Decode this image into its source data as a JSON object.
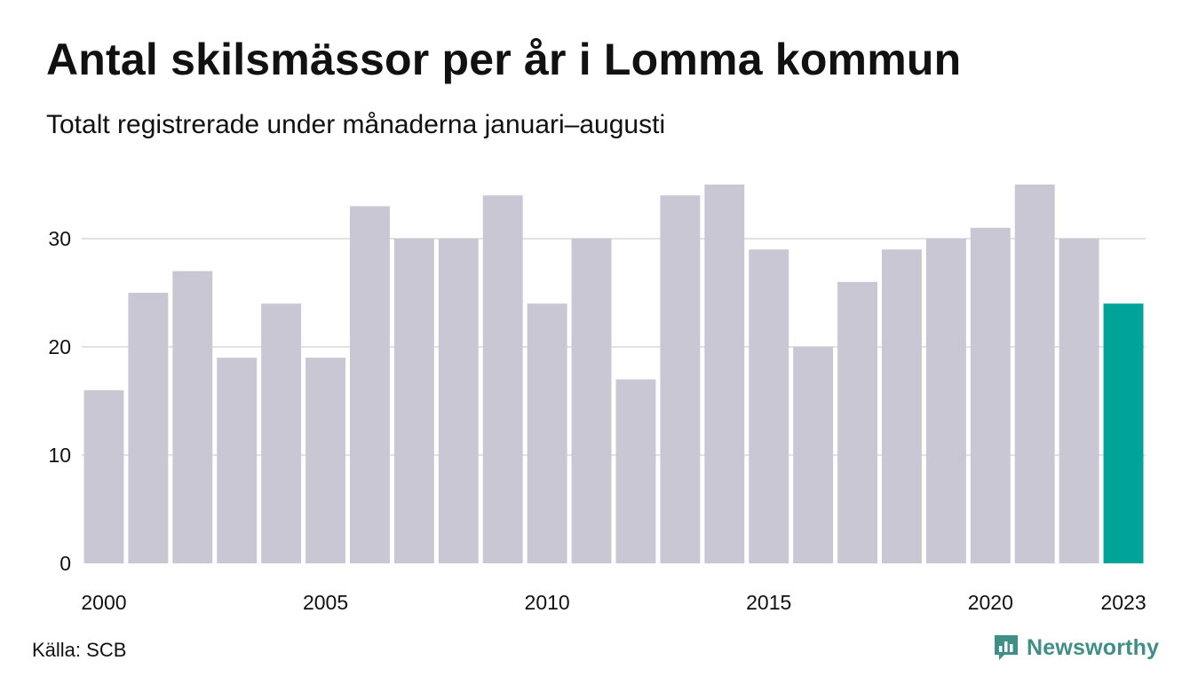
{
  "header": {
    "title": "Antal skilsmässor per år i Lomma kommun",
    "subtitle": "Totalt registrerade under månaderna januari–augusti"
  },
  "footer": {
    "source": "Källa: SCB",
    "brand": "Newsworthy",
    "brand_icon": "newsworthy-logo-icon"
  },
  "colors": {
    "bar": "#c9c7d3",
    "highlight": "#00a398",
    "grid": "#e2e2e2",
    "brand": "#3f8f86"
  },
  "chart_data": {
    "type": "bar",
    "title": "Antal skilsmässor per år i Lomma kommun",
    "subtitle": "Totalt registrerade under månaderna januari–augusti",
    "categories": [
      "2000",
      "2001",
      "2002",
      "2003",
      "2004",
      "2005",
      "2006",
      "2007",
      "2008",
      "2009",
      "2010",
      "2011",
      "2012",
      "2013",
      "2014",
      "2015",
      "2016",
      "2017",
      "2018",
      "2019",
      "2020",
      "2021",
      "2022",
      "2023"
    ],
    "values": [
      16,
      25,
      27,
      19,
      24,
      19,
      33,
      30,
      30,
      34,
      24,
      30,
      17,
      34,
      35,
      29,
      20,
      26,
      29,
      30,
      31,
      35,
      30,
      24
    ],
    "highlight_index": 23,
    "x_tick_labels": [
      "2000",
      "2005",
      "2010",
      "2015",
      "2020",
      "2023"
    ],
    "y_ticks": [
      0,
      10,
      20,
      30
    ],
    "ylim": [
      0,
      35
    ],
    "grid": true,
    "xlabel": "",
    "ylabel": ""
  }
}
